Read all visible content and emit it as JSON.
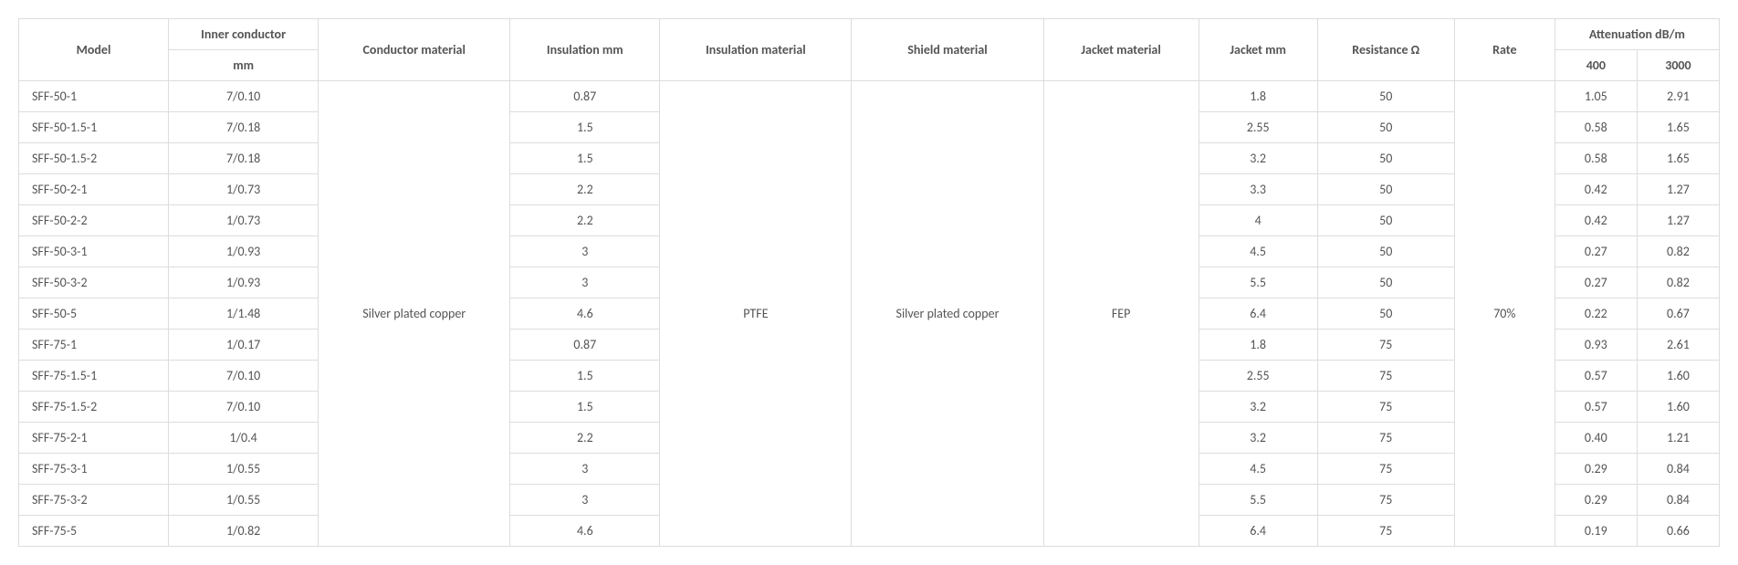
{
  "headers": {
    "model": "Model",
    "inner_conductor_line1": "Inner conductor",
    "inner_conductor_line2": "mm",
    "conductor_material": "Conductor material",
    "insulation_mm": "Insulation mm",
    "insulation_material": "Insulation material",
    "shield_material": "Shield material",
    "jacket_material": "Jacket material",
    "jacket_mm": "Jacket mm",
    "resistance": "Resistance Ω",
    "rate": "Rate",
    "attenuation": "Attenuation dB/m",
    "att_400": "400",
    "att_3000": "3000"
  },
  "merged": {
    "conductor_material": "Silver plated copper",
    "insulation_material": "PTFE",
    "shield_material": "Silver plated copper",
    "jacket_material": "FEP",
    "rate": "70%"
  },
  "rows": [
    {
      "model": "SFF-50-1",
      "inner": "7/0.10",
      "ins_mm": "0.87",
      "jacket_mm": "1.8",
      "res": "50",
      "a400": "1.05",
      "a3000": "2.91"
    },
    {
      "model": "SFF-50-1.5-1",
      "inner": "7/0.18",
      "ins_mm": "1.5",
      "jacket_mm": "2.55",
      "res": "50",
      "a400": "0.58",
      "a3000": "1.65"
    },
    {
      "model": "SFF-50-1.5-2",
      "inner": "7/0.18",
      "ins_mm": "1.5",
      "jacket_mm": "3.2",
      "res": "50",
      "a400": "0.58",
      "a3000": "1.65"
    },
    {
      "model": "SFF-50-2-1",
      "inner": "1/0.73",
      "ins_mm": "2.2",
      "jacket_mm": "3.3",
      "res": "50",
      "a400": "0.42",
      "a3000": "1.27"
    },
    {
      "model": "SFF-50-2-2",
      "inner": "1/0.73",
      "ins_mm": "2.2",
      "jacket_mm": "4",
      "res": "50",
      "a400": "0.42",
      "a3000": "1.27"
    },
    {
      "model": "SFF-50-3-1",
      "inner": "1/0.93",
      "ins_mm": "3",
      "jacket_mm": "4.5",
      "res": "50",
      "a400": "0.27",
      "a3000": "0.82"
    },
    {
      "model": "SFF-50-3-2",
      "inner": "1/0.93",
      "ins_mm": "3",
      "jacket_mm": "5.5",
      "res": "50",
      "a400": "0.27",
      "a3000": "0.82"
    },
    {
      "model": "SFF-50-5",
      "inner": "1/1.48",
      "ins_mm": "4.6",
      "jacket_mm": "6.4",
      "res": "50",
      "a400": "0.22",
      "a3000": "0.67"
    },
    {
      "model": "SFF-75-1",
      "inner": "1/0.17",
      "ins_mm": "0.87",
      "jacket_mm": "1.8",
      "res": "75",
      "a400": "0.93",
      "a3000": "2.61"
    },
    {
      "model": "SFF-75-1.5-1",
      "inner": "7/0.10",
      "ins_mm": "1.5",
      "jacket_mm": "2.55",
      "res": "75",
      "a400": "0.57",
      "a3000": "1.60"
    },
    {
      "model": "SFF-75-1.5-2",
      "inner": "7/0.10",
      "ins_mm": "1.5",
      "jacket_mm": "3.2",
      "res": "75",
      "a400": "0.57",
      "a3000": "1.60"
    },
    {
      "model": "SFF-75-2-1",
      "inner": "1/0.4",
      "ins_mm": "2.2",
      "jacket_mm": "3.2",
      "res": "75",
      "a400": "0.40",
      "a3000": "1.21"
    },
    {
      "model": "SFF-75-3-1",
      "inner": "1/0.55",
      "ins_mm": "3",
      "jacket_mm": "4.5",
      "res": "75",
      "a400": "0.29",
      "a3000": "0.84"
    },
    {
      "model": "SFF-75-3-2",
      "inner": "1/0.55",
      "ins_mm": "3",
      "jacket_mm": "5.5",
      "res": "75",
      "a400": "0.29",
      "a3000": "0.84"
    },
    {
      "model": "SFF-75-5",
      "inner": "1/0.82",
      "ins_mm": "4.6",
      "jacket_mm": "6.4",
      "res": "75",
      "a400": "0.19",
      "a3000": "0.66"
    }
  ]
}
